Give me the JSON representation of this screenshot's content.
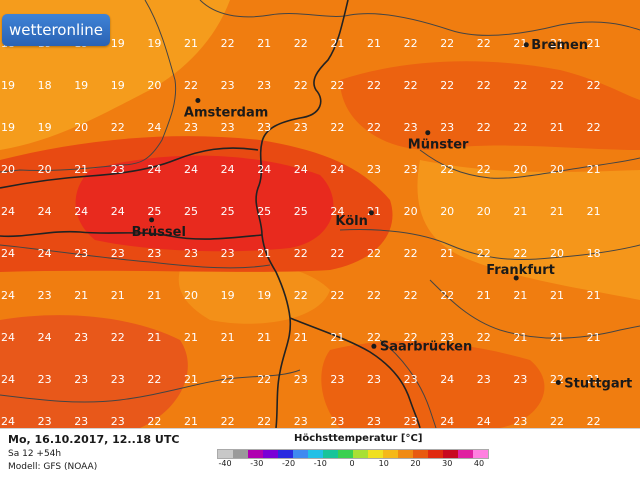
{
  "brand": {
    "logo_text": "wetteronline"
  },
  "map": {
    "variable": "Höchsttemperatur [°C]",
    "colors": {
      "land_base": "#f07d10",
      "warm_zone": "#e84a12",
      "hot_zone": "#e82a1e",
      "cool_zone": "#f59c1c",
      "border": "#222222",
      "region_line": "#444444"
    },
    "grid_rows": [
      {
        "row": 0,
        "values": [
          "18",
          "19",
          "19",
          "19",
          "19",
          "21",
          "22",
          "21",
          "22",
          "21",
          "21",
          "22",
          "22",
          "22",
          "21",
          "21",
          "21"
        ]
      },
      {
        "row": 1,
        "values": [
          "19",
          "18",
          "19",
          "19",
          "20",
          "22",
          "23",
          "23",
          "22",
          "22",
          "22",
          "22",
          "22",
          "22",
          "22",
          "22",
          "22"
        ]
      },
      {
        "row": 2,
        "values": [
          "19",
          "19",
          "20",
          "22",
          "24",
          "23",
          "23",
          "23",
          "23",
          "22",
          "22",
          "23",
          "23",
          "22",
          "22",
          "21",
          "22"
        ]
      },
      {
        "row": 3,
        "values": [
          "20",
          "20",
          "21",
          "23",
          "24",
          "24",
          "24",
          "24",
          "24",
          "24",
          "23",
          "23",
          "22",
          "22",
          "20",
          "20",
          "21"
        ]
      },
      {
        "row": 4,
        "values": [
          "24",
          "24",
          "24",
          "24",
          "25",
          "25",
          "25",
          "25",
          "25",
          "24",
          "21",
          "20",
          "20",
          "20",
          "21",
          "21",
          "21"
        ]
      },
      {
        "row": 5,
        "values": [
          "24",
          "24",
          "23",
          "23",
          "23",
          "23",
          "23",
          "21",
          "22",
          "22",
          "22",
          "22",
          "21",
          "22",
          "22",
          "20",
          "18"
        ]
      },
      {
        "row": 6,
        "values": [
          "24",
          "23",
          "21",
          "21",
          "21",
          "20",
          "19",
          "19",
          "22",
          "22",
          "22",
          "22",
          "22",
          "21",
          "21",
          "21",
          "21"
        ]
      },
      {
        "row": 7,
        "values": [
          "24",
          "24",
          "23",
          "22",
          "21",
          "21",
          "21",
          "21",
          "21",
          "21",
          "22",
          "22",
          "23",
          "22",
          "21",
          "21",
          "21"
        ]
      },
      {
        "row": 8,
        "values": [
          "24",
          "23",
          "23",
          "23",
          "22",
          "21",
          "22",
          "22",
          "23",
          "23",
          "23",
          "23",
          "24",
          "23",
          "23",
          "22",
          "21"
        ]
      },
      {
        "row": 9,
        "values": [
          "24",
          "23",
          "23",
          "23",
          "22",
          "21",
          "22",
          "22",
          "23",
          "23",
          "23",
          "23",
          "24",
          "24",
          "23",
          "22",
          "22"
        ]
      }
    ],
    "cities": [
      {
        "name": "Bremen",
        "lon": 8.8,
        "lat": 53.08
      },
      {
        "name": "Amsterdam",
        "lon": 4.9,
        "lat": 52.37
      },
      {
        "name": "Münster",
        "lon": 7.63,
        "lat": 51.96
      },
      {
        "name": "Brüssel",
        "lon": 4.35,
        "lat": 50.85
      },
      {
        "name": "Köln",
        "lon": 6.96,
        "lat": 50.94
      },
      {
        "name": "Frankfurt",
        "lon": 8.68,
        "lat": 50.11
      },
      {
        "name": "Saarbrücken",
        "lon": 6.99,
        "lat": 49.24
      },
      {
        "name": "Stuttgart",
        "lon": 9.18,
        "lat": 48.78
      }
    ]
  },
  "footer": {
    "date_line": "Mo, 16.10.2017, 12..18 UTC",
    "run_line": "Sa 12 +54h",
    "model_line": "Modell: GFS (NOAA)",
    "legend_title": "Höchsttemperatur [°C]",
    "legend_ticks": [
      "-40",
      "-30",
      "-20",
      "-10",
      "0",
      "10",
      "20",
      "30",
      "40"
    ],
    "legend_colors": [
      "#c8c8c8",
      "#9a9a9a",
      "#b000b0",
      "#7a00d6",
      "#2a2ae0",
      "#3f8af0",
      "#22c0e6",
      "#18c49a",
      "#3ad050",
      "#a8e034",
      "#f0e020",
      "#f5b818",
      "#f08a12",
      "#e85a10",
      "#e02a10",
      "#c80820",
      "#e020a0",
      "#ff80e0"
    ]
  }
}
